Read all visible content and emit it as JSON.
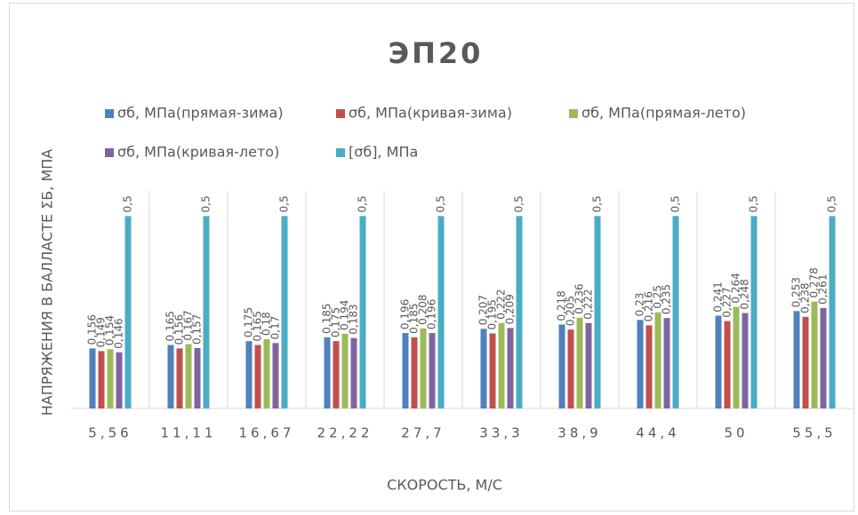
{
  "chart_data": {
    "type": "bar",
    "title": "ЭП20",
    "x_label": "СКОРОСТЬ, М/С",
    "y_label": "НАПРЯЖЕНИЯ В БАЛЛАСТЕ ΣБ, МПА",
    "categories": [
      "5,56",
      "11,11",
      "16,67",
      "22,22",
      "27,7",
      "33,3",
      "38,9",
      "44,4",
      "50",
      "55,5"
    ],
    "ylim": [
      0,
      0.6
    ],
    "series": [
      {
        "name": "σб, МПа(прямая-зима)",
        "color": "#4f81bd",
        "values": [
          0.156,
          0.165,
          0.175,
          0.185,
          0.196,
          0.207,
          0.218,
          0.23,
          0.241,
          0.253
        ],
        "value_labels": [
          "0,156",
          "0,165",
          "0,175",
          "0,185",
          "0,196",
          "0,207",
          "0,218",
          "0,23",
          "0,241",
          "0,253"
        ]
      },
      {
        "name": "σб, МПа(кривая-зима)",
        "color": "#c0504d",
        "values": [
          0.149,
          0.156,
          0.165,
          0.175,
          0.185,
          0.195,
          0.205,
          0.216,
          0.227,
          0.238
        ],
        "value_labels": [
          "0,149",
          "0,156",
          "0,165",
          "0,175",
          "0,185",
          "0,195",
          "0,205",
          "0,216",
          "0,227",
          "0,238"
        ]
      },
      {
        "name": "σб, МПа(прямая-лето)",
        "color": "#9bbb59",
        "values": [
          0.154,
          0.167,
          0.18,
          0.194,
          0.208,
          0.222,
          0.236,
          0.25,
          0.264,
          0.278
        ],
        "value_labels": [
          "0,154",
          "0,167",
          "0,18",
          "0,194",
          "0,208",
          "0,222",
          "0,236",
          "0,25",
          "0,264",
          "0,278"
        ]
      },
      {
        "name": "σб, МПа(кривая-лето)",
        "color": "#8064a2",
        "values": [
          0.146,
          0.157,
          0.17,
          0.183,
          0.196,
          0.209,
          0.222,
          0.235,
          0.248,
          0.261
        ],
        "value_labels": [
          "0,146",
          "0,157",
          "0,17",
          "0,183",
          "0,196",
          "0,209",
          "0,222",
          "0,235",
          "0,248",
          "0,261"
        ]
      },
      {
        "name": "[σб], МПа",
        "color": "#4bacc6",
        "values": [
          0.5,
          0.5,
          0.5,
          0.5,
          0.5,
          0.5,
          0.5,
          0.5,
          0.5,
          0.5
        ],
        "value_labels": [
          "0,5",
          "0,5",
          "0,5",
          "0,5",
          "0,5",
          "0,5",
          "0,5",
          "0,5",
          "0,5",
          "0,5"
        ]
      }
    ]
  }
}
